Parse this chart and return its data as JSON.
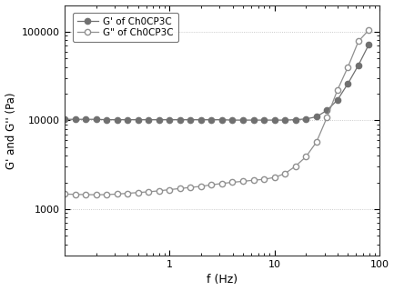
{
  "title": "",
  "xlabel": "f (Hz)",
  "ylabel": "G' and G'' (Pa)",
  "legend": [
    "G' of Ch0CP3C",
    "G\" of Ch0CP3C"
  ],
  "xlim": [
    0.1,
    100
  ],
  "ylim": [
    300,
    200000
  ],
  "color_Gprime": "#707070",
  "color_Gdprime": "#909090",
  "G_prime_freq": [
    0.1,
    0.126,
    0.158,
    0.2,
    0.251,
    0.316,
    0.398,
    0.501,
    0.631,
    0.794,
    1.0,
    1.259,
    1.585,
    1.995,
    2.512,
    3.162,
    3.981,
    5.012,
    6.31,
    7.943,
    10.0,
    12.589,
    15.849,
    19.953,
    25.119,
    31.623,
    39.811,
    50.119,
    63.096,
    79.433
  ],
  "G_prime_val": [
    10300,
    10300,
    10300,
    10300,
    10200,
    10200,
    10200,
    10200,
    10200,
    10200,
    10200,
    10200,
    10200,
    10200,
    10200,
    10200,
    10100,
    10100,
    10100,
    10100,
    10100,
    10100,
    10200,
    10400,
    11000,
    13000,
    17000,
    26000,
    42000,
    72000
  ],
  "G_dprime_freq": [
    0.1,
    0.126,
    0.158,
    0.2,
    0.251,
    0.316,
    0.398,
    0.501,
    0.631,
    0.794,
    1.0,
    1.259,
    1.585,
    1.995,
    2.512,
    3.162,
    3.981,
    5.012,
    6.31,
    7.943,
    10.0,
    12.589,
    15.849,
    19.953,
    25.119,
    31.623,
    39.811,
    50.119,
    63.096,
    79.433
  ],
  "G_dprime_val": [
    1480,
    1470,
    1460,
    1455,
    1460,
    1480,
    1510,
    1540,
    1570,
    1610,
    1660,
    1710,
    1760,
    1810,
    1880,
    1950,
    2010,
    2060,
    2120,
    2170,
    2280,
    2520,
    3050,
    3900,
    5700,
    10800,
    22000,
    40000,
    78000,
    105000
  ]
}
